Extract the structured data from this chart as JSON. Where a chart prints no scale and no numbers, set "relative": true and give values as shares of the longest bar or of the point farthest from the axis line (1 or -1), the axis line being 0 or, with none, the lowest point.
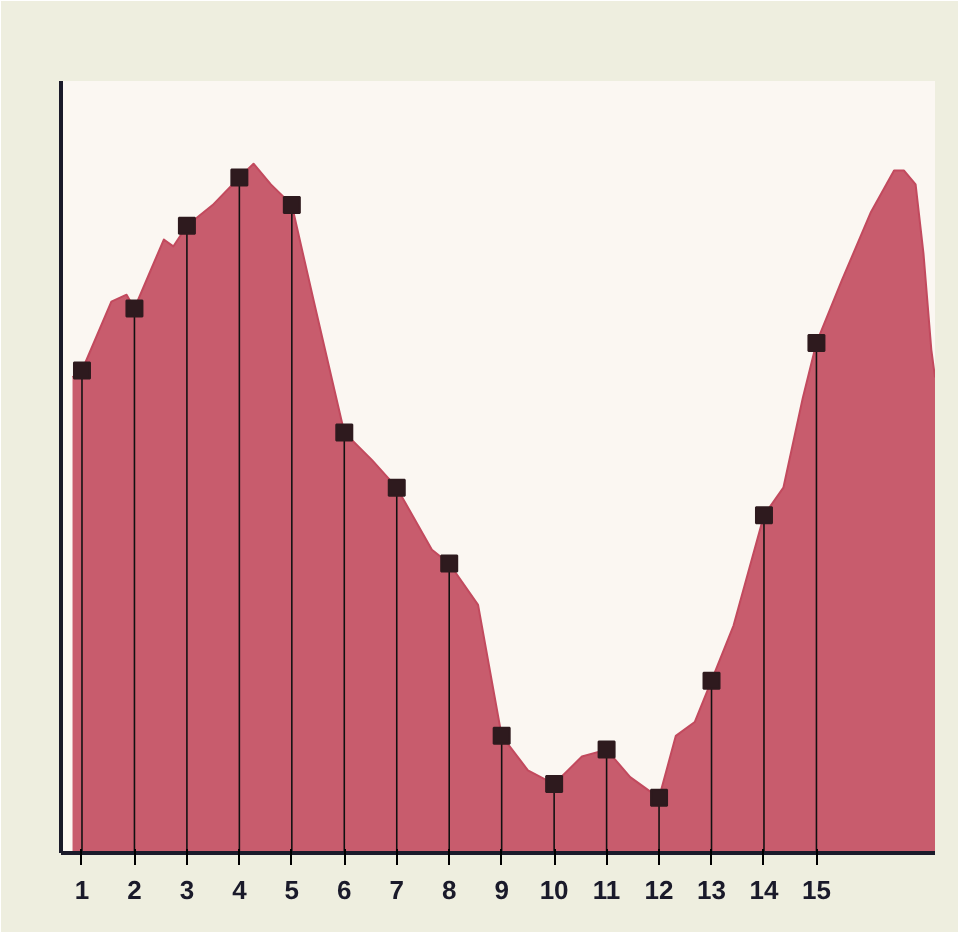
{
  "chart_data": {
    "type": "area",
    "relative": true,
    "tick_labels": "x",
    "grid": false,
    "xlim": [
      0.6,
      17.26
    ],
    "xticks": [
      1,
      2,
      3,
      4,
      5,
      6,
      7,
      8,
      9,
      10,
      11,
      12,
      13,
      14,
      15
    ],
    "series": [
      {
        "color": "#c24a5e",
        "x": [
          0.82,
          1,
          1.56,
          1.85,
          2,
          2.28,
          2.56,
          2.74,
          3,
          3.49,
          4,
          4.27,
          4.6,
          5,
          5.42,
          6,
          6.53,
          7,
          7.67,
          8,
          8.55,
          9,
          9.5,
          10,
          10.53,
          11,
          11.45,
          12,
          12.32,
          12.68,
          13,
          13.42,
          14,
          14.37,
          14.74,
          15,
          15.48,
          16.04,
          16.48,
          16.67,
          16.89,
          17.04,
          17.19,
          17.26
        ],
        "values": [
          0.69,
          0.7,
          0.8,
          0.81,
          0.79,
          0.84,
          0.89,
          0.88,
          0.91,
          0.94,
          0.98,
          1.0,
          0.97,
          0.94,
          0.8,
          0.61,
          0.57,
          0.53,
          0.44,
          0.42,
          0.36,
          0.17,
          0.12,
          0.1,
          0.14,
          0.15,
          0.11,
          0.08,
          0.17,
          0.19,
          0.25,
          0.33,
          0.49,
          0.53,
          0.66,
          0.74,
          0.83,
          0.93,
          0.99,
          0.99,
          0.97,
          0.87,
          0.73,
          0.69
        ]
      },
      {
        "type": "lollipop",
        "marker": "square",
        "color": "#2e1a1e",
        "x": [
          1,
          2,
          3,
          4,
          5,
          6,
          7,
          8,
          9,
          10,
          11,
          12,
          13,
          14,
          15
        ],
        "values": [
          0.7,
          0.79,
          0.91,
          0.98,
          0.94,
          0.61,
          0.53,
          0.42,
          0.17,
          0.1,
          0.15,
          0.08,
          0.25,
          0.49,
          0.74
        ]
      }
    ]
  }
}
